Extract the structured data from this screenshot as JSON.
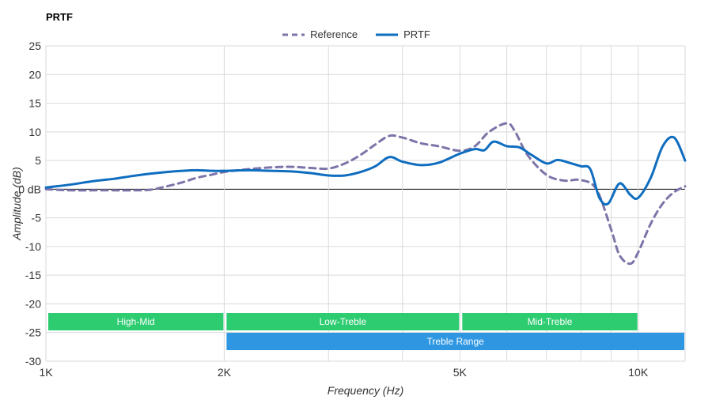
{
  "chart_data": {
    "type": "line",
    "title": "PRTF",
    "xlabel": "Frequency (Hz)",
    "ylabel": "Amplitude (dB)",
    "xscale": "log",
    "xlim": [
      1000,
      12000
    ],
    "ylim": [
      -30,
      25
    ],
    "yticks": [
      25,
      20,
      15,
      10,
      5,
      0,
      -5,
      -10,
      -15,
      -20,
      -25,
      -30
    ],
    "ytick_labels": [
      "25",
      "20",
      "15",
      "10",
      "5",
      "0 dB",
      "-5",
      "-10",
      "-15",
      "-20",
      "-25",
      "-30"
    ],
    "xticks": [
      1000,
      2000,
      5000,
      10000
    ],
    "xtick_labels": [
      "1K",
      "2K",
      "5K",
      "10K"
    ],
    "xgrid": [
      1000,
      2000,
      3000,
      4000,
      5000,
      6000,
      7000,
      8000,
      9000,
      10000,
      12000
    ],
    "grid": true,
    "legend_position": "top-center",
    "series": [
      {
        "name": "Reference",
        "style": "dashed",
        "color": "#7b75a8",
        "x": [
          1000,
          1100,
          1200,
          1300,
          1400,
          1500,
          1600,
          1700,
          1800,
          1900,
          2000,
          2200,
          2400,
          2600,
          2800,
          3000,
          3200,
          3400,
          3600,
          3800,
          4000,
          4300,
          4600,
          5000,
          5300,
          5600,
          6000,
          6200,
          6500,
          7000,
          7500,
          8000,
          8500,
          9000,
          9300,
          9700,
          10000,
          10500,
          11000,
          11500,
          12000
        ],
        "y": [
          0,
          -0.2,
          -0.2,
          -0.2,
          -0.2,
          -0.1,
          0.5,
          1.2,
          2.0,
          2.5,
          3.0,
          3.5,
          3.8,
          3.9,
          3.7,
          3.6,
          4.5,
          6.0,
          7.8,
          9.3,
          9.0,
          8.0,
          7.5,
          6.7,
          7.5,
          10.0,
          11.5,
          10.0,
          6.0,
          2.5,
          1.5,
          1.6,
          0,
          -7.0,
          -11.5,
          -13.0,
          -11.0,
          -6.0,
          -2.5,
          -0.5,
          0.5
        ]
      },
      {
        "name": "PRTF",
        "style": "solid",
        "color": "#0f6dbf",
        "x": [
          1000,
          1100,
          1200,
          1300,
          1400,
          1500,
          1600,
          1700,
          1800,
          1900,
          2000,
          2200,
          2400,
          2600,
          2800,
          3000,
          3200,
          3400,
          3600,
          3800,
          4000,
          4300,
          4600,
          5000,
          5300,
          5500,
          5700,
          6000,
          6300,
          6600,
          7000,
          7300,
          7600,
          8000,
          8300,
          8600,
          8900,
          9300,
          9700,
          10000,
          10500,
          11000,
          11500,
          12000
        ],
        "y": [
          0.3,
          0.8,
          1.4,
          1.8,
          2.3,
          2.7,
          3.0,
          3.2,
          3.3,
          3.2,
          3.2,
          3.3,
          3.2,
          3.1,
          2.8,
          2.4,
          2.4,
          3.0,
          4.0,
          5.6,
          4.8,
          4.2,
          4.6,
          6.2,
          7.0,
          6.8,
          8.3,
          7.5,
          7.3,
          6.0,
          4.5,
          5.1,
          4.7,
          4.0,
          3.5,
          -1.5,
          -2.5,
          1.0,
          -1.0,
          -1.5,
          2.0,
          7.5,
          9.0,
          5.0
        ]
      }
    ],
    "bands": [
      {
        "label": "High-Mid",
        "row": 1,
        "x_start": 1000,
        "x_end": 2000,
        "color": "#2ecc71"
      },
      {
        "label": "Low-Treble",
        "row": 1,
        "x_start": 2000,
        "x_end": 5000,
        "color": "#2ecc71"
      },
      {
        "label": "Mid-Treble",
        "row": 1,
        "x_start": 5000,
        "x_end": 10000,
        "color": "#2ecc71"
      },
      {
        "label": "Treble Range",
        "row": 2,
        "x_start": 2000,
        "x_end": 12000,
        "color": "#2f97e2"
      }
    ]
  },
  "legend": {
    "reference": "Reference",
    "prtf": "PRTF"
  }
}
